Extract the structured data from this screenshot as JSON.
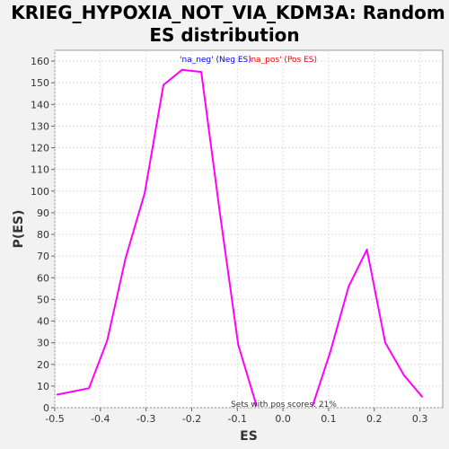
{
  "chart_data": {
    "type": "line",
    "title_line1": "KRIEG_HYPOXIA_NOT_VIA_KDM3A: Random",
    "title_line2": "ES distribution",
    "xlabel": "ES",
    "ylabel": "P(ES)",
    "xlim": [
      -0.5,
      0.35
    ],
    "ylim": [
      0,
      165
    ],
    "xticks": [
      -0.5,
      -0.4,
      -0.3,
      -0.2,
      -0.1,
      0.0,
      0.1,
      0.2,
      0.3
    ],
    "xtick_labels": [
      "-0.5",
      "-0.4",
      "-0.3",
      "-0.2",
      "-0.1",
      "0.0",
      "0.1",
      "0.2",
      "0.3"
    ],
    "yticks": [
      0,
      10,
      20,
      30,
      40,
      50,
      60,
      70,
      80,
      90,
      100,
      110,
      120,
      130,
      140,
      150,
      160
    ],
    "ytick_labels": [
      "0",
      "10",
      "20",
      "30",
      "40",
      "50",
      "60",
      "70",
      "80",
      "90",
      "100",
      "110",
      "120",
      "130",
      "140",
      "150",
      "160"
    ],
    "grid": true,
    "legend_placement": "top-center",
    "legend": [
      {
        "label": "'na_neg' (Neg ES)",
        "color": "#0000ff"
      },
      {
        "label": "'na_pos' (Pos ES)",
        "color": "#ff0000"
      }
    ],
    "annotation": "Sets with pos scores: 21%",
    "series": [
      {
        "color": "#ff00ff",
        "x": [
          -0.495,
          -0.425,
          -0.385,
          -0.345,
          -0.303,
          -0.262,
          -0.221,
          -0.179,
          -0.139,
          -0.098,
          -0.058
        ],
        "y": [
          6,
          9,
          31,
          69,
          99,
          149,
          156,
          155,
          91,
          29,
          1
        ]
      },
      {
        "color": "#ff00ff",
        "x": [
          0.065,
          0.104,
          0.144,
          0.184,
          0.224,
          0.265,
          0.305
        ],
        "y": [
          1,
          26,
          56,
          73,
          30,
          15,
          5
        ]
      }
    ]
  }
}
